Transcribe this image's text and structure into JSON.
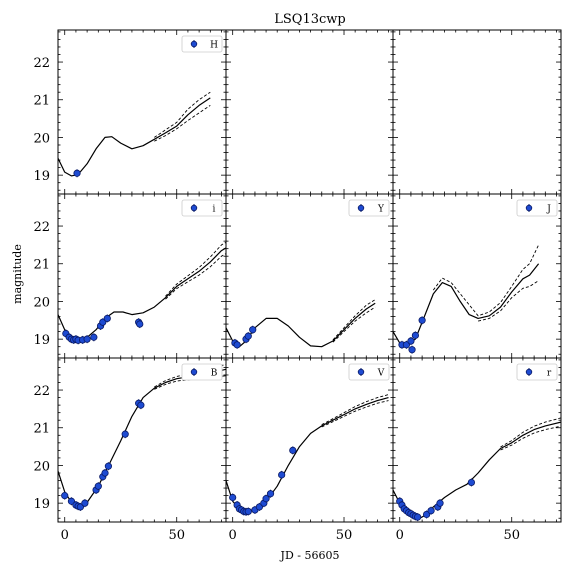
{
  "figure": {
    "title": "LSQ13cwp",
    "xlabel": "JD - 56605",
    "ylabel": "magnitude"
  },
  "chart_data": {
    "type": "line",
    "title": "LSQ13cwp",
    "xlabel": "JD - 56605",
    "ylabel": "magnitude",
    "xlim": [
      -3,
      72
    ],
    "ylim": [
      22.85,
      18.5
    ],
    "y_inverted": true,
    "x_ticks": [
      0,
      50
    ],
    "y_ticks": [
      19,
      20,
      21,
      22
    ],
    "grid": false,
    "legend_position": "top-right",
    "panels": [
      {
        "band": "H",
        "legend": "H",
        "observations": [
          [
            5.5,
            19.05
          ]
        ],
        "model": [
          [
            -3,
            19.45
          ],
          [
            0,
            19.08
          ],
          [
            3,
            18.98
          ],
          [
            6,
            19.02
          ],
          [
            10,
            19.3
          ],
          [
            14,
            19.7
          ],
          [
            18,
            20.0
          ],
          [
            21,
            20.02
          ],
          [
            25,
            19.85
          ],
          [
            30,
            19.7
          ],
          [
            35,
            19.78
          ],
          [
            40,
            19.95
          ],
          [
            45,
            20.12
          ],
          [
            50,
            20.3
          ],
          [
            55,
            20.6
          ],
          [
            60,
            20.85
          ],
          [
            65,
            21.05
          ]
        ],
        "upper": [
          [
            40,
            19.9
          ],
          [
            45,
            20.05
          ],
          [
            50,
            20.23
          ],
          [
            55,
            20.45
          ],
          [
            60,
            20.65
          ],
          [
            65,
            20.85
          ]
        ],
        "lower": [
          [
            40,
            20.0
          ],
          [
            45,
            20.2
          ],
          [
            50,
            20.4
          ],
          [
            55,
            20.75
          ],
          [
            60,
            21.0
          ],
          [
            65,
            21.2
          ]
        ]
      },
      {
        "band": "",
        "legend": "",
        "observations": [],
        "model": [],
        "upper": [],
        "lower": []
      },
      {
        "band": "",
        "legend": "",
        "observations": [],
        "model": [],
        "upper": [],
        "lower": []
      },
      {
        "band": "i",
        "legend": "i",
        "observations": [
          [
            0.5,
            19.15
          ],
          [
            2,
            19.05
          ],
          [
            3,
            19.0
          ],
          [
            4,
            18.98
          ],
          [
            5,
            19.0
          ],
          [
            6,
            18.97
          ],
          [
            8,
            18.98
          ],
          [
            10,
            19.0
          ],
          [
            13,
            19.05
          ],
          [
            16,
            19.35
          ],
          [
            17,
            19.45
          ],
          [
            19,
            19.55
          ],
          [
            33,
            19.45
          ],
          [
            33.5,
            19.4
          ]
        ],
        "model": [
          [
            -3,
            19.65
          ],
          [
            0,
            19.25
          ],
          [
            3,
            19.05
          ],
          [
            6,
            19.0
          ],
          [
            10,
            19.05
          ],
          [
            14,
            19.25
          ],
          [
            18,
            19.55
          ],
          [
            22,
            19.72
          ],
          [
            26,
            19.72
          ],
          [
            30,
            19.65
          ],
          [
            35,
            19.7
          ],
          [
            40,
            19.85
          ],
          [
            45,
            20.1
          ],
          [
            50,
            20.4
          ],
          [
            55,
            20.6
          ],
          [
            60,
            20.8
          ],
          [
            65,
            21.05
          ],
          [
            70,
            21.35
          ],
          [
            72,
            21.42
          ]
        ],
        "upper": [
          [
            45,
            20.06
          ],
          [
            50,
            20.34
          ],
          [
            55,
            20.52
          ],
          [
            60,
            20.7
          ],
          [
            65,
            20.92
          ],
          [
            70,
            21.2
          ],
          [
            72,
            21.27
          ]
        ],
        "lower": [
          [
            45,
            20.14
          ],
          [
            50,
            20.46
          ],
          [
            55,
            20.68
          ],
          [
            60,
            20.9
          ],
          [
            65,
            21.18
          ],
          [
            70,
            21.5
          ],
          [
            72,
            21.57
          ]
        ]
      },
      {
        "band": "Y",
        "legend": "Y",
        "observations": [
          [
            1,
            18.9
          ],
          [
            2,
            18.85
          ],
          [
            6,
            19.0
          ],
          [
            7,
            19.08
          ],
          [
            9,
            19.25
          ]
        ],
        "model": [
          [
            -3,
            19.3
          ],
          [
            0,
            18.95
          ],
          [
            3,
            18.8
          ],
          [
            6,
            18.95
          ],
          [
            10,
            19.3
          ],
          [
            15,
            19.55
          ],
          [
            20,
            19.55
          ],
          [
            25,
            19.35
          ],
          [
            30,
            19.05
          ],
          [
            35,
            18.82
          ],
          [
            40,
            18.8
          ],
          [
            45,
            18.95
          ],
          [
            50,
            19.25
          ],
          [
            55,
            19.55
          ],
          [
            60,
            19.8
          ],
          [
            64,
            19.95
          ]
        ],
        "upper": [
          [
            45,
            18.92
          ],
          [
            50,
            19.2
          ],
          [
            55,
            19.48
          ],
          [
            60,
            19.7
          ],
          [
            64,
            19.85
          ]
        ],
        "lower": [
          [
            45,
            18.98
          ],
          [
            50,
            19.3
          ],
          [
            55,
            19.62
          ],
          [
            60,
            19.9
          ],
          [
            64,
            20.05
          ]
        ]
      },
      {
        "band": "J",
        "legend": "J",
        "observations": [
          [
            1,
            18.85
          ],
          [
            3,
            18.85
          ],
          [
            5,
            18.95
          ],
          [
            7,
            19.1
          ],
          [
            10,
            19.5
          ],
          [
            5.5,
            18.72
          ]
        ],
        "model": [
          [
            -3,
            19.2
          ],
          [
            0,
            18.9
          ],
          [
            3,
            18.85
          ],
          [
            7,
            19.0
          ],
          [
            11,
            19.6
          ],
          [
            15,
            20.2
          ],
          [
            19,
            20.5
          ],
          [
            23,
            20.4
          ],
          [
            27,
            20.0
          ],
          [
            31,
            19.65
          ],
          [
            35,
            19.55
          ],
          [
            40,
            19.62
          ],
          [
            45,
            19.85
          ],
          [
            50,
            20.25
          ],
          [
            55,
            20.6
          ],
          [
            58,
            20.7
          ],
          [
            62,
            21.0
          ]
        ],
        "upper": [
          [
            35,
            19.48
          ],
          [
            40,
            19.55
          ],
          [
            45,
            19.75
          ],
          [
            50,
            20.1
          ],
          [
            55,
            20.35
          ],
          [
            58,
            20.4
          ],
          [
            62,
            20.55
          ]
        ],
        "lower": [
          [
            15,
            20.3
          ],
          [
            19,
            20.62
          ],
          [
            23,
            20.5
          ],
          [
            35,
            19.62
          ],
          [
            40,
            19.72
          ],
          [
            45,
            19.97
          ],
          [
            50,
            20.4
          ],
          [
            55,
            20.85
          ],
          [
            58,
            21.0
          ],
          [
            62,
            21.5
          ]
        ]
      },
      {
        "band": "B",
        "legend": "B",
        "observations": [
          [
            0,
            19.2
          ],
          [
            3,
            19.05
          ],
          [
            5,
            18.95
          ],
          [
            6,
            18.92
          ],
          [
            7,
            18.9
          ],
          [
            9,
            19.0
          ],
          [
            14,
            19.35
          ],
          [
            15,
            19.45
          ],
          [
            17,
            19.7
          ],
          [
            18,
            19.8
          ],
          [
            19.5,
            19.98
          ],
          [
            27,
            20.83
          ],
          [
            33,
            21.65
          ],
          [
            34,
            21.6
          ]
        ],
        "model": [
          [
            -3,
            19.85
          ],
          [
            0,
            19.3
          ],
          [
            3,
            19.02
          ],
          [
            6,
            18.92
          ],
          [
            10,
            19.02
          ],
          [
            15,
            19.45
          ],
          [
            20,
            20.05
          ],
          [
            25,
            20.65
          ],
          [
            30,
            21.3
          ],
          [
            35,
            21.8
          ],
          [
            40,
            22.05
          ],
          [
            45,
            22.2
          ],
          [
            50,
            22.3
          ],
          [
            55,
            22.35
          ],
          [
            60,
            22.4
          ],
          [
            65,
            22.45
          ],
          [
            72,
            22.55
          ]
        ],
        "upper": [
          [
            40,
            22.02
          ],
          [
            45,
            22.15
          ],
          [
            50,
            22.24
          ],
          [
            55,
            22.27
          ],
          [
            60,
            22.3
          ],
          [
            65,
            22.33
          ],
          [
            72,
            22.38
          ]
        ],
        "lower": [
          [
            40,
            22.08
          ],
          [
            45,
            22.25
          ],
          [
            50,
            22.36
          ],
          [
            55,
            22.43
          ],
          [
            60,
            22.52
          ],
          [
            65,
            22.58
          ],
          [
            72,
            22.68
          ]
        ]
      },
      {
        "band": "V",
        "legend": "V",
        "observations": [
          [
            0,
            19.15
          ],
          [
            2,
            18.95
          ],
          [
            3,
            18.85
          ],
          [
            4,
            18.82
          ],
          [
            5,
            18.78
          ],
          [
            6,
            18.77
          ],
          [
            7,
            18.78
          ],
          [
            10,
            18.82
          ],
          [
            12,
            18.9
          ],
          [
            14,
            19.0
          ],
          [
            15,
            19.12
          ],
          [
            17,
            19.25
          ],
          [
            22,
            19.75
          ],
          [
            27,
            20.4
          ]
        ],
        "model": [
          [
            -3,
            19.6
          ],
          [
            0,
            19.05
          ],
          [
            3,
            18.85
          ],
          [
            7,
            18.8
          ],
          [
            11,
            18.85
          ],
          [
            15,
            19.05
          ],
          [
            20,
            19.45
          ],
          [
            25,
            20.0
          ],
          [
            30,
            20.5
          ],
          [
            35,
            20.85
          ],
          [
            40,
            21.05
          ],
          [
            45,
            21.2
          ],
          [
            50,
            21.35
          ],
          [
            55,
            21.5
          ],
          [
            60,
            21.62
          ],
          [
            65,
            21.72
          ],
          [
            70,
            21.8
          ]
        ],
        "upper": [
          [
            40,
            21.02
          ],
          [
            45,
            21.16
          ],
          [
            50,
            21.3
          ],
          [
            55,
            21.44
          ],
          [
            60,
            21.55
          ],
          [
            65,
            21.65
          ],
          [
            70,
            21.72
          ]
        ],
        "lower": [
          [
            40,
            21.08
          ],
          [
            45,
            21.24
          ],
          [
            50,
            21.4
          ],
          [
            55,
            21.56
          ],
          [
            60,
            21.69
          ],
          [
            65,
            21.8
          ],
          [
            70,
            21.88
          ]
        ]
      },
      {
        "band": "r",
        "legend": "r",
        "observations": [
          [
            0,
            19.05
          ],
          [
            1,
            18.95
          ],
          [
            2,
            18.85
          ],
          [
            3,
            18.8
          ],
          [
            4,
            18.75
          ],
          [
            5,
            18.72
          ],
          [
            6,
            18.68
          ],
          [
            7,
            18.65
          ],
          [
            8,
            18.63
          ],
          [
            12,
            18.7
          ],
          [
            14,
            18.8
          ],
          [
            17,
            18.9
          ],
          [
            18,
            19.0
          ],
          [
            32,
            19.55
          ]
        ],
        "model": [
          [
            -3,
            19.35
          ],
          [
            0,
            19.0
          ],
          [
            3,
            18.8
          ],
          [
            6,
            18.65
          ],
          [
            9,
            18.6
          ],
          [
            12,
            18.7
          ],
          [
            15,
            18.9
          ],
          [
            20,
            19.15
          ],
          [
            25,
            19.35
          ],
          [
            30,
            19.5
          ],
          [
            35,
            19.8
          ],
          [
            40,
            20.15
          ],
          [
            45,
            20.45
          ],
          [
            50,
            20.6
          ],
          [
            55,
            20.8
          ],
          [
            60,
            20.95
          ],
          [
            65,
            21.05
          ],
          [
            72,
            21.15
          ]
        ],
        "upper": [
          [
            45,
            20.41
          ],
          [
            50,
            20.54
          ],
          [
            55,
            20.72
          ],
          [
            60,
            20.86
          ],
          [
            65,
            20.95
          ],
          [
            72,
            21.04
          ]
        ],
        "lower": [
          [
            45,
            20.49
          ],
          [
            50,
            20.66
          ],
          [
            55,
            20.88
          ],
          [
            60,
            21.04
          ],
          [
            65,
            21.15
          ],
          [
            72,
            21.26
          ]
        ]
      }
    ]
  }
}
